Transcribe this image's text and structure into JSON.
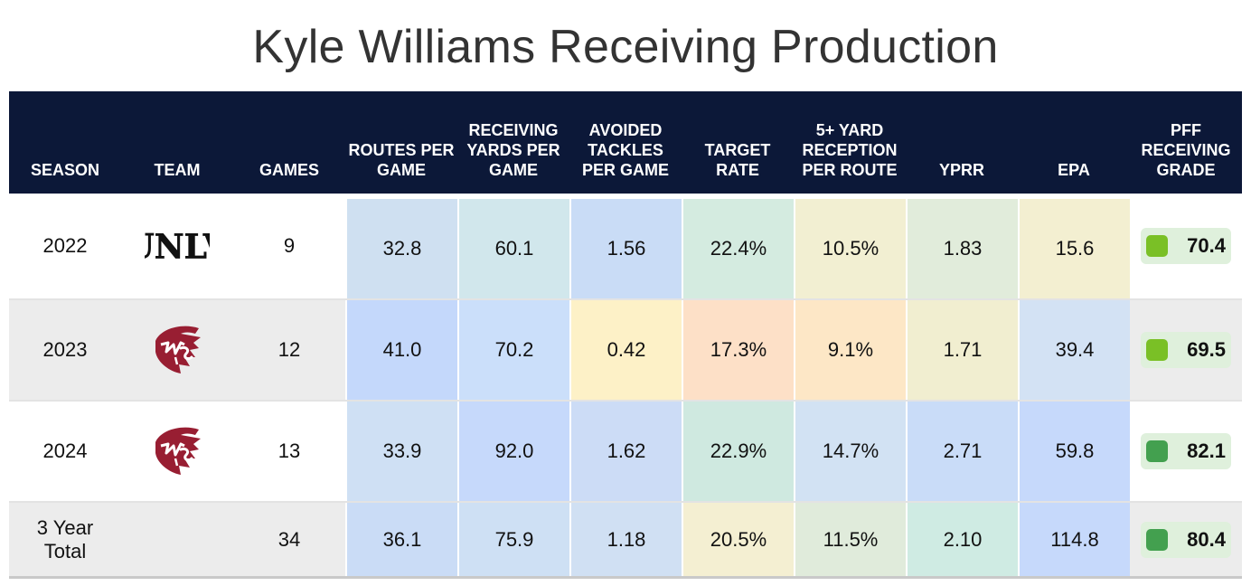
{
  "title": "Kyle Williams Receiving Production",
  "headers": {
    "season": "SEASON",
    "team": "TEAM",
    "games": "GAMES",
    "routes": "ROUTES PER GAME",
    "rec_yards": "RECEIVING YARDS PER GAME",
    "avoided": "AVOIDED TACKLES PER GAME",
    "target_rate": "TARGET RATE",
    "five_yard": "5+ YARD RECEPTION PER ROUTE",
    "yprr": "YPRR",
    "epa": "EPA",
    "grade": "PFF RECEIVING GRADE"
  },
  "rows": [
    {
      "season": "2022",
      "team_logo": "unlv-logo",
      "games": "9",
      "routes": "32.8",
      "rec_yards": "60.1",
      "avoided": "1.56",
      "target_rate": "22.4%",
      "five_yard": "10.5%",
      "yprr": "1.83",
      "epa": "15.6",
      "grade": "70.4"
    },
    {
      "season": "2023",
      "team_logo": "wsu-cougars-logo",
      "games": "12",
      "routes": "41.0",
      "rec_yards": "70.2",
      "avoided": "0.42",
      "target_rate": "17.3%",
      "five_yard": "9.1%",
      "yprr": "1.71",
      "epa": "39.4",
      "grade": "69.5"
    },
    {
      "season": "2024",
      "team_logo": "wsu-cougars-logo",
      "games": "13",
      "routes": "33.9",
      "rec_yards": "92.0",
      "avoided": "1.62",
      "target_rate": "22.9%",
      "five_yard": "14.7%",
      "yprr": "2.71",
      "epa": "59.8",
      "grade": "82.1"
    },
    {
      "season": "3 Year Total",
      "team_logo": "",
      "games": "34",
      "routes": "36.1",
      "rec_yards": "75.9",
      "avoided": "1.18",
      "target_rate": "20.5%",
      "five_yard": "11.5%",
      "yprr": "2.10",
      "epa": "114.8",
      "grade": "80.4"
    }
  ],
  "logos": {
    "unlv_text": "UNLV",
    "wsu_text": "WSU"
  },
  "colors": {
    "header_bg": "#0c1838",
    "grade_light_green": "#7ac026",
    "grade_dark_green": "#43a04f",
    "grade_pill_bg": "#dff0dc",
    "wsu_crimson": "#981e32",
    "cells": [
      [
        "#cfe0f1",
        "#d1e7ec",
        "#c9dcf6",
        "#d4ebe0",
        "#f2efd2",
        "#e1ecdb",
        "#f3efd1"
      ],
      [
        "#c4d8fb",
        "#cbdffa",
        "#fdf1c7",
        "#fde0c7",
        "#fde7c6",
        "#f1eed0",
        "#d3e2f4"
      ],
      [
        "#cfe0f4",
        "#c6d9fb",
        "#ccdcf6",
        "#cfe9e0",
        "#d2e2f3",
        "#c9dcf8",
        "#c6d9fb"
      ],
      [
        "#cadcf6",
        "#cee0f4",
        "#d0e0f3",
        "#f4efd2",
        "#e0ebdb",
        "#cfebe3",
        "#c6d9fb"
      ]
    ],
    "grade_dots": [
      "#7ac026",
      "#7ac026",
      "#43a04f",
      "#43a04f"
    ]
  },
  "chart_data": {
    "type": "table",
    "title": "Kyle Williams Receiving Production",
    "columns": [
      "SEASON",
      "TEAM",
      "GAMES",
      "ROUTES PER GAME",
      "RECEIVING YARDS PER GAME",
      "AVOIDED TACKLES PER GAME",
      "TARGET RATE",
      "5+ YARD RECEPTION PER ROUTE",
      "YPRR",
      "EPA",
      "PFF RECEIVING GRADE"
    ],
    "rows": [
      [
        "2022",
        "UNLV",
        9,
        32.8,
        60.1,
        1.56,
        "22.4%",
        "10.5%",
        1.83,
        15.6,
        70.4
      ],
      [
        "2023",
        "WSU",
        12,
        41.0,
        70.2,
        0.42,
        "17.3%",
        "9.1%",
        1.71,
        39.4,
        69.5
      ],
      [
        "2024",
        "WSU",
        13,
        33.9,
        92.0,
        1.62,
        "22.9%",
        "14.7%",
        2.71,
        59.8,
        82.1
      ],
      [
        "3 Year Total",
        "",
        34,
        36.1,
        75.9,
        1.18,
        "20.5%",
        "11.5%",
        2.1,
        114.8,
        80.4
      ]
    ]
  }
}
